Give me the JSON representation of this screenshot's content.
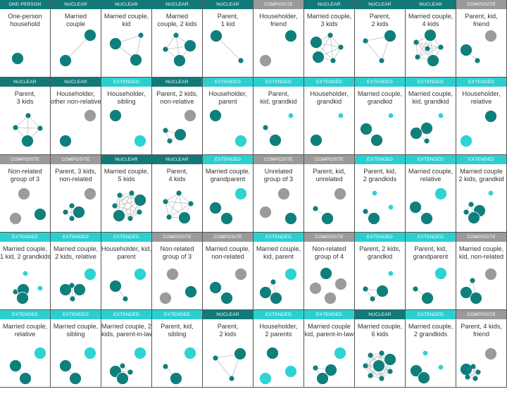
{
  "colors": {
    "NUCLEAR": "#117a78",
    "ONE-PERSON": "#117a78",
    "EXTENDED": "#2ccfd0",
    "COMPOSITE": "#9a9a9a",
    "family_member": "#0f7f7c",
    "relative": "#2ed3d3",
    "non_relative": "#9b9b9b",
    "edge": "#bdbdbd"
  },
  "cards": [
    {
      "category": "ONE-PERSON",
      "label": [
        "One-person",
        "household"
      ]
    },
    {
      "category": "NUCLEAR",
      "label": [
        "Married",
        "couple"
      ]
    },
    {
      "category": "NUCLEAR",
      "label": [
        "Married couple,",
        "kid"
      ]
    },
    {
      "category": "NUCLEAR",
      "label": [
        "Married",
        "couple, 2 kids"
      ]
    },
    {
      "category": "NUCLEAR",
      "label": [
        "Parent,",
        "1 kid"
      ]
    },
    {
      "category": "COMPOSITE",
      "label": [
        "Householder,",
        "friend"
      ]
    },
    {
      "category": "NUCLEAR",
      "label": [
        "Married couple,",
        "3 kids"
      ]
    },
    {
      "category": "NUCLEAR",
      "label": [
        "Parent,",
        "2 kids"
      ]
    },
    {
      "category": "NUCLEAR",
      "label": [
        "Married couple,",
        "4 kids"
      ]
    },
    {
      "category": "COMPOSITE",
      "label": [
        "Parent, kid,",
        "friend"
      ]
    },
    {
      "category": "NUCLEAR",
      "label": [
        "Parent,",
        "3 kids"
      ]
    },
    {
      "category": "NUCLEAR",
      "label": [
        "Householder,",
        "other non-relative"
      ]
    },
    {
      "category": "EXTENDED",
      "label": [
        "Householder,",
        "sibling"
      ]
    },
    {
      "category": "NUCLEAR",
      "label": [
        "Parent, 2 kids,",
        "non-relative"
      ]
    },
    {
      "category": "EXTENDED",
      "label": [
        "Householder,",
        "parent"
      ]
    },
    {
      "category": "EXTENDED",
      "label": [
        "Parent,",
        "kid, grandkid"
      ]
    },
    {
      "category": "EXTENDED",
      "label": [
        "Householder,",
        "grandkid"
      ]
    },
    {
      "category": "EXTENDED",
      "label": [
        "Married couple,",
        "grandkid"
      ]
    },
    {
      "category": "EXTENDED",
      "label": [
        "Married couple,",
        "kid, grandkid"
      ]
    },
    {
      "category": "EXTENDED",
      "label": [
        "Householder,",
        "relative"
      ]
    },
    {
      "category": "COMPOSITE",
      "label": [
        "Non-related",
        "group of 3"
      ]
    },
    {
      "category": "COMPOSITE",
      "label": [
        "Parent, 3 kids,",
        "non-related"
      ]
    },
    {
      "category": "NUCLEAR",
      "label": [
        "Married couple,",
        "5 kids"
      ]
    },
    {
      "category": "NUCLEAR",
      "label": [
        "Parent,",
        "4 kids"
      ]
    },
    {
      "category": "EXTENDED",
      "label": [
        "Married couple,",
        "grandparent"
      ]
    },
    {
      "category": "COMPOSITE",
      "label": [
        "Unrelated",
        "group of 3"
      ]
    },
    {
      "category": "COMPOSITE",
      "label": [
        "Parent, kid,",
        "unrelated"
      ]
    },
    {
      "category": "EXTENDED",
      "label": [
        "Parent, kid,",
        "2 grandkids"
      ]
    },
    {
      "category": "EXTENDED",
      "label": [
        "Married couple,",
        "relative"
      ]
    },
    {
      "category": "EXTENDED",
      "label": [
        "Married couple",
        "2 kids, grandkid"
      ]
    },
    {
      "category": "EXTENDED",
      "label": [
        "Married couple,",
        "1 kid, 2 grandkids"
      ]
    },
    {
      "category": "EXTENDED",
      "label": [
        "Married couple,",
        "2 kids, relative"
      ]
    },
    {
      "category": "EXTENDED",
      "label": [
        "Householder, kid,",
        "parent"
      ]
    },
    {
      "category": "COMPOSITE",
      "label": [
        "Non-related",
        "group of 3"
      ]
    },
    {
      "category": "COMPOSITE",
      "label": [
        "Married couple,",
        "non-related"
      ]
    },
    {
      "category": "EXTENDED",
      "label": [
        "Married couple,",
        "kid, parent"
      ]
    },
    {
      "category": "COMPOSITE",
      "label": [
        "Non-related",
        "group of 4"
      ]
    },
    {
      "category": "EXTENDED",
      "label": [
        "Parent, 2 kids,",
        "grandkid"
      ]
    },
    {
      "category": "EXTENDED",
      "label": [
        "Parent, kid,",
        "grandparent"
      ]
    },
    {
      "category": "COMPOSITE",
      "label": [
        "Married couple,",
        "kid, non-related"
      ]
    },
    {
      "category": "EXTENDED",
      "label": [
        "Married couple,",
        "relative"
      ]
    },
    {
      "category": "EXTENDED",
      "label": [
        "Married couple,",
        "sibling"
      ]
    },
    {
      "category": "EXTENDED",
      "label": [
        "Married couple, 2",
        "kids, parent-in-law"
      ]
    },
    {
      "category": "EXTENDED",
      "label": [
        "Parent, kid,",
        "sibling"
      ]
    },
    {
      "category": "NUCLEAR",
      "label": [
        "Parent,",
        "2 kids"
      ]
    },
    {
      "category": "EXTENDED",
      "label": [
        "Householder,",
        "2 parents"
      ]
    },
    {
      "category": "EXTENDED",
      "label": [
        "Married couple",
        "kid, parent-in-law"
      ]
    },
    {
      "category": "NUCLEAR",
      "label": [
        "Married couple,",
        "6 kids"
      ]
    },
    {
      "category": "EXTENDED",
      "label": [
        "Married couple,",
        "2 grandkids"
      ]
    },
    {
      "category": "COMPOSITE",
      "label": [
        "Parent, 4 kids,",
        "friend"
      ]
    }
  ]
}
